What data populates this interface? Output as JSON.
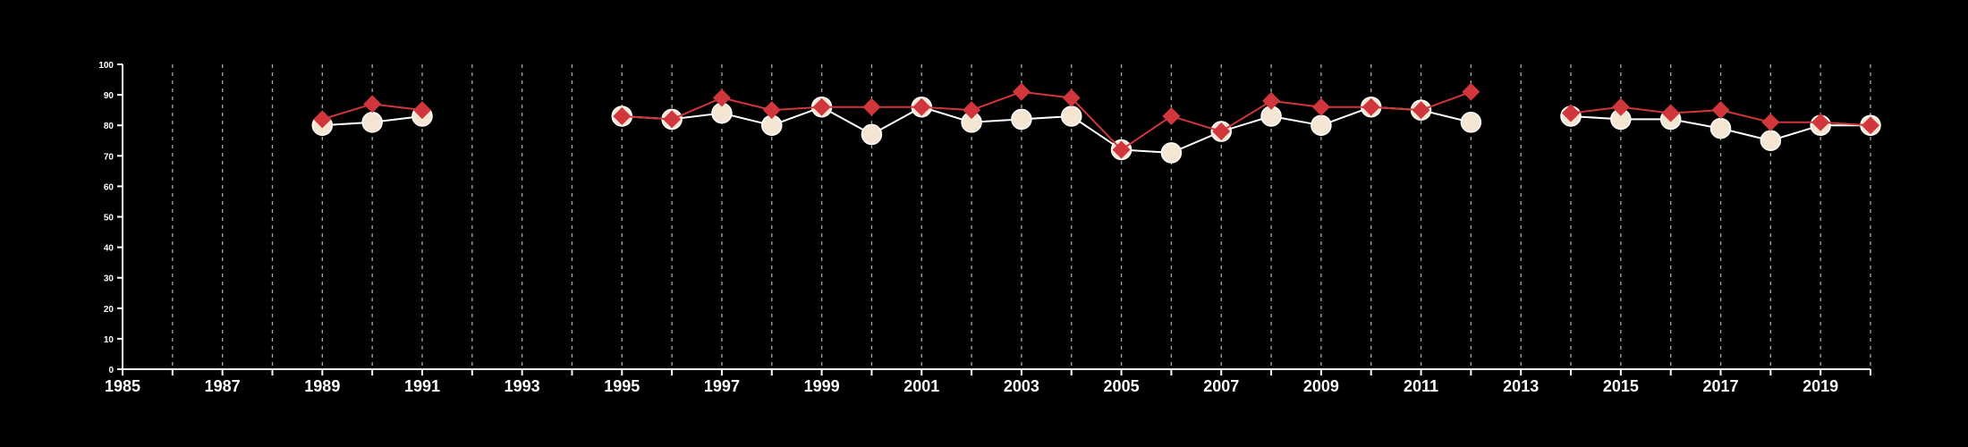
{
  "chart_data": {
    "type": "line",
    "title": "",
    "xlabel": "",
    "ylabel": "",
    "xlim": [
      1985,
      2020
    ],
    "ylim": [
      0,
      100
    ],
    "x_ticks": [
      1985,
      1987,
      1989,
      1991,
      1993,
      1995,
      1997,
      1999,
      2001,
      2003,
      2005,
      2007,
      2009,
      2011,
      2013,
      2015,
      2017,
      2019
    ],
    "y_ticks": [
      0,
      10,
      20,
      30,
      40,
      50,
      60,
      70,
      80,
      90,
      100
    ],
    "vertical_gridlines": "dashed, every year",
    "series": [
      {
        "marker": "circle",
        "color": "#f5e6d3",
        "points": [
          {
            "x": 1989,
            "y": 80
          },
          {
            "x": 1990,
            "y": 81
          },
          {
            "x": 1991,
            "y": 83
          },
          {
            "x": 1995,
            "y": 83
          },
          {
            "x": 1996,
            "y": 82
          },
          {
            "x": 1997,
            "y": 84
          },
          {
            "x": 1998,
            "y": 80
          },
          {
            "x": 1999,
            "y": 86
          },
          {
            "x": 2000,
            "y": 77
          },
          {
            "x": 2001,
            "y": 86
          },
          {
            "x": 2002,
            "y": 81
          },
          {
            "x": 2003,
            "y": 82
          },
          {
            "x": 2004,
            "y": 83
          },
          {
            "x": 2005,
            "y": 72
          },
          {
            "x": 2006,
            "y": 71
          },
          {
            "x": 2007,
            "y": 78
          },
          {
            "x": 2008,
            "y": 83
          },
          {
            "x": 2009,
            "y": 80
          },
          {
            "x": 2010,
            "y": 86
          },
          {
            "x": 2011,
            "y": 85
          },
          {
            "x": 2012,
            "y": 81
          },
          {
            "x": 2014,
            "y": 83
          },
          {
            "x": 2015,
            "y": 82
          },
          {
            "x": 2016,
            "y": 82
          },
          {
            "x": 2017,
            "y": 79
          },
          {
            "x": 2018,
            "y": 75
          },
          {
            "x": 2019,
            "y": 80
          },
          {
            "x": 2020,
            "y": 80
          }
        ]
      },
      {
        "marker": "diamond",
        "color": "#d0363c",
        "points": [
          {
            "x": 1989,
            "y": 82
          },
          {
            "x": 1990,
            "y": 87
          },
          {
            "x": 1991,
            "y": 85
          },
          {
            "x": 1995,
            "y": 83
          },
          {
            "x": 1996,
            "y": 82
          },
          {
            "x": 1997,
            "y": 89
          },
          {
            "x": 1998,
            "y": 85
          },
          {
            "x": 1999,
            "y": 86
          },
          {
            "x": 2000,
            "y": 86
          },
          {
            "x": 2001,
            "y": 86
          },
          {
            "x": 2002,
            "y": 85
          },
          {
            "x": 2003,
            "y": 91
          },
          {
            "x": 2004,
            "y": 89
          },
          {
            "x": 2005,
            "y": 72
          },
          {
            "x": 2006,
            "y": 83
          },
          {
            "x": 2007,
            "y": 78
          },
          {
            "x": 2008,
            "y": 88
          },
          {
            "x": 2009,
            "y": 86
          },
          {
            "x": 2010,
            "y": 86
          },
          {
            "x": 2011,
            "y": 85
          },
          {
            "x": 2012,
            "y": 91
          },
          {
            "x": 2014,
            "y": 84
          },
          {
            "x": 2015,
            "y": 86
          },
          {
            "x": 2016,
            "y": 84
          },
          {
            "x": 2017,
            "y": 85
          },
          {
            "x": 2018,
            "y": 81
          },
          {
            "x": 2019,
            "y": 81
          },
          {
            "x": 2020,
            "y": 80
          }
        ]
      }
    ]
  }
}
